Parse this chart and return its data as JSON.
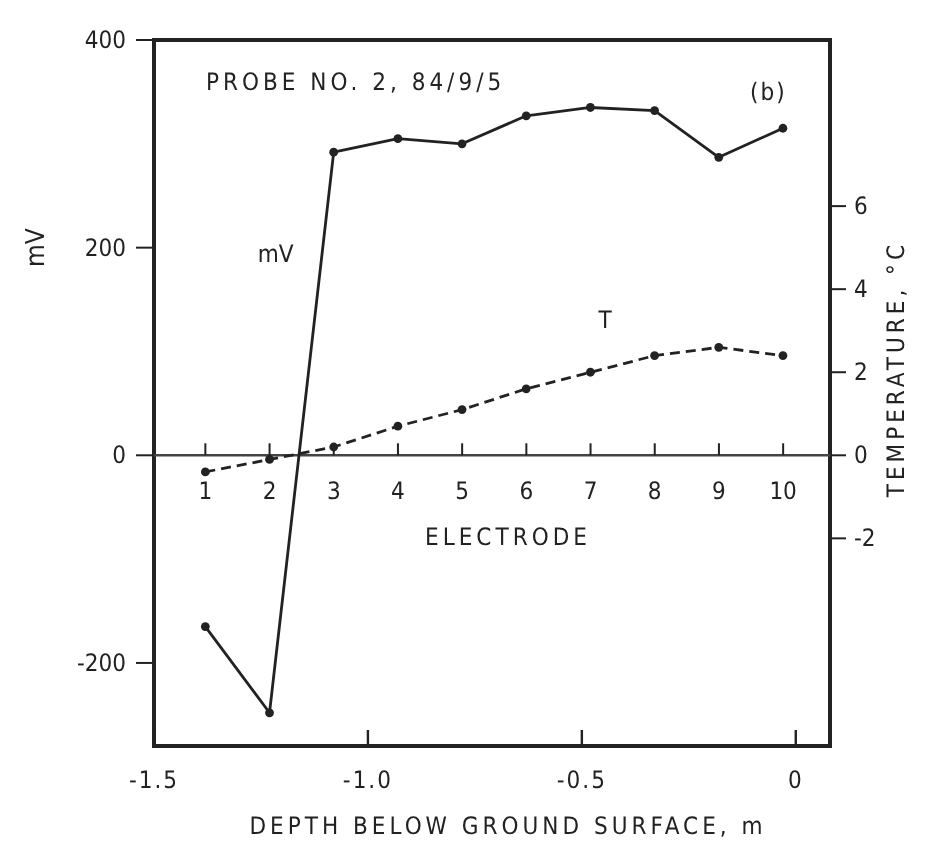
{
  "chart_data": {
    "type": "line",
    "title": "PROBE NO. 2, 84/9/5",
    "annotations": [
      "(b)"
    ],
    "xlabel": "DEPTH BELOW GROUND SURFACE, m",
    "ylabel": "mV",
    "y2label": "TEMPERATURE, °C",
    "x2label": "ELECTRODE",
    "x": [
      -1.38,
      -1.23,
      -1.08,
      -0.93,
      -0.78,
      -0.63,
      -0.48,
      -0.33,
      -0.18,
      -0.03
    ],
    "series": [
      {
        "name": "mV",
        "color": "#222222",
        "values": [
          -165,
          -248,
          292,
          305,
          300,
          327,
          335,
          332,
          287,
          315
        ],
        "line_style": "solid"
      },
      {
        "name": "T",
        "color": "#222222",
        "axis": "y2",
        "values": [
          -0.4,
          -0.1,
          0.2,
          0.7,
          1.1,
          1.6,
          2.0,
          2.4,
          2.6,
          2.4
        ],
        "line_style": "dashed"
      }
    ],
    "xlim": [
      -1.5,
      0.08
    ],
    "xticks": [
      {
        "value": -1.5,
        "label": "-1.5"
      },
      {
        "value": -1.0,
        "label": "-1.0"
      },
      -0.5,
      0
    ],
    "x2lim": [
      0.2,
      10.73
    ],
    "x2ticks": [
      1,
      2,
      3,
      4,
      5,
      6,
      7,
      8,
      9,
      10
    ],
    "ylim": [
      -280,
      400
    ],
    "yticks": [
      -200,
      0,
      200,
      400
    ],
    "y2lim": [
      -7,
      10
    ],
    "y2ticks": [
      -2,
      0,
      2,
      4,
      6
    ],
    "marker": "circle",
    "grid": false
  }
}
